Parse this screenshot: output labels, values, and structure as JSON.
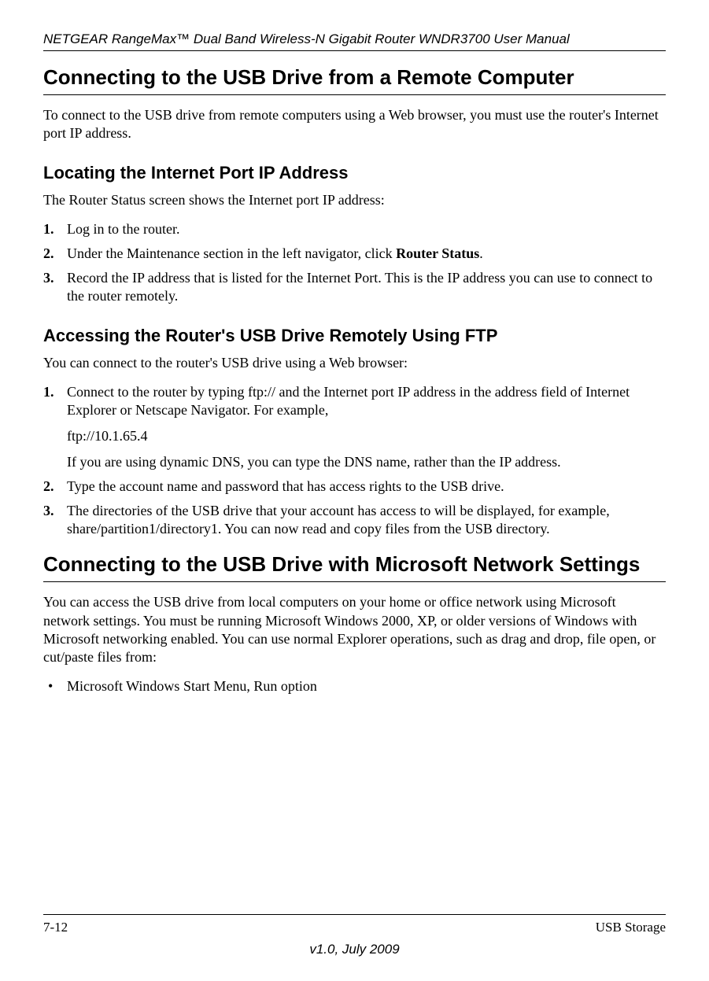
{
  "running_header": "NETGEAR RangeMax™ Dual Band Wireless-N Gigabit Router WNDR3700 User Manual",
  "section1": {
    "title": "Connecting to the USB Drive from a Remote Computer",
    "intro": "To connect to the USB drive from remote computers using a Web browser, you must use the router's Internet port IP address."
  },
  "sub1": {
    "title": "Locating the Internet Port IP Address",
    "lead": "The Router Status screen shows the Internet port IP address:",
    "steps": {
      "s1": "Log in to the router.",
      "s2a": "Under the Maintenance section in the left navigator, click ",
      "s2b": "Router Status",
      "s2c": ".",
      "s3": "Record the IP address that is listed for the Internet Port. This is the IP address you can use to connect to the router remotely."
    }
  },
  "sub2": {
    "title": "Accessing the Router's USB Drive Remotely Using FTP",
    "lead": "You can connect to the router's USB drive using a Web browser:",
    "steps": {
      "s1": "Connect to the router by typing ftp:// and the Internet port IP address in the address field of Internet Explorer or Netscape Navigator. For example,",
      "s1_sub1": "ftp://10.1.65.4",
      "s1_sub2": "If you are using dynamic DNS, you can type the DNS name, rather than the IP address.",
      "s2": "Type the account name and password that has access rights to the USB drive.",
      "s3": "The directories of the USB drive that your account has access to will be displayed, for example, share/partition1/directory1. You can now read and copy files from the USB directory."
    }
  },
  "section2": {
    "title": "Connecting to the USB Drive with Microsoft Network Settings",
    "intro": "You can access the USB drive from local computers on your home or office network using Microsoft network settings. You must be running Microsoft Windows 2000, XP, or older versions of Windows with Microsoft networking enabled. You can use normal Explorer operations, such as drag and drop, file open, or cut/paste files from:",
    "bullets": {
      "b1": "Microsoft Windows Start Menu, Run option"
    }
  },
  "footer": {
    "left": "7-12",
    "right": "USB Storage",
    "center": "v1.0, July 2009"
  }
}
